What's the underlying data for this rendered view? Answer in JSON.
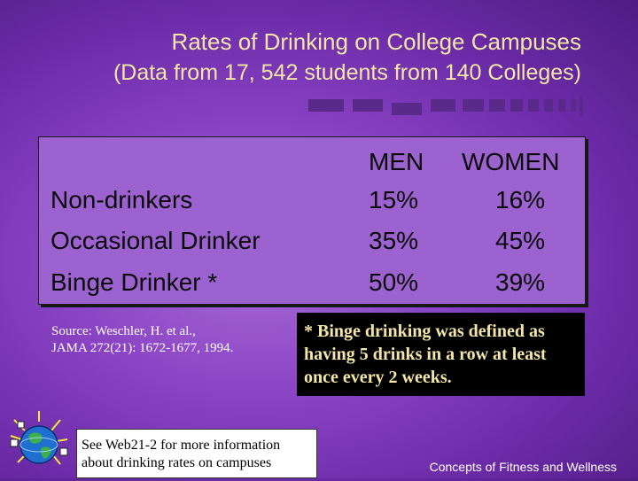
{
  "slide": {
    "title": "Rates of Drinking on College Campuses",
    "subtitle": "(Data from 17, 542 students from 140 Colleges)"
  },
  "table": {
    "headers": [
      "MEN",
      "WOMEN"
    ],
    "rows": [
      {
        "label": "Non-drinkers",
        "men": "15%",
        "women": "16%"
      },
      {
        "label": "Occasional Drinker",
        "men": "35%",
        "women": "45%"
      },
      {
        "label": "Binge Drinker *",
        "men": "50%",
        "women": "39%"
      }
    ]
  },
  "source": {
    "line1": "Source: Weschler, H. et al.,",
    "line2": "JAMA 272(21): 1672-1677, 1994."
  },
  "note": {
    "text": "* Binge drinking was defined as having 5 drinks in a row at least once every 2 weeks."
  },
  "see_more": {
    "line1": "See Web21-2 for more information",
    "line2": "about drinking rates on campuses"
  },
  "footer": "Concepts of Fitness and Wellness",
  "colors": {
    "title": "#f3e6a6",
    "table_bg": "#9c62cf",
    "note_bg": "#000000"
  },
  "icons": [
    "globe-logo-icon"
  ]
}
